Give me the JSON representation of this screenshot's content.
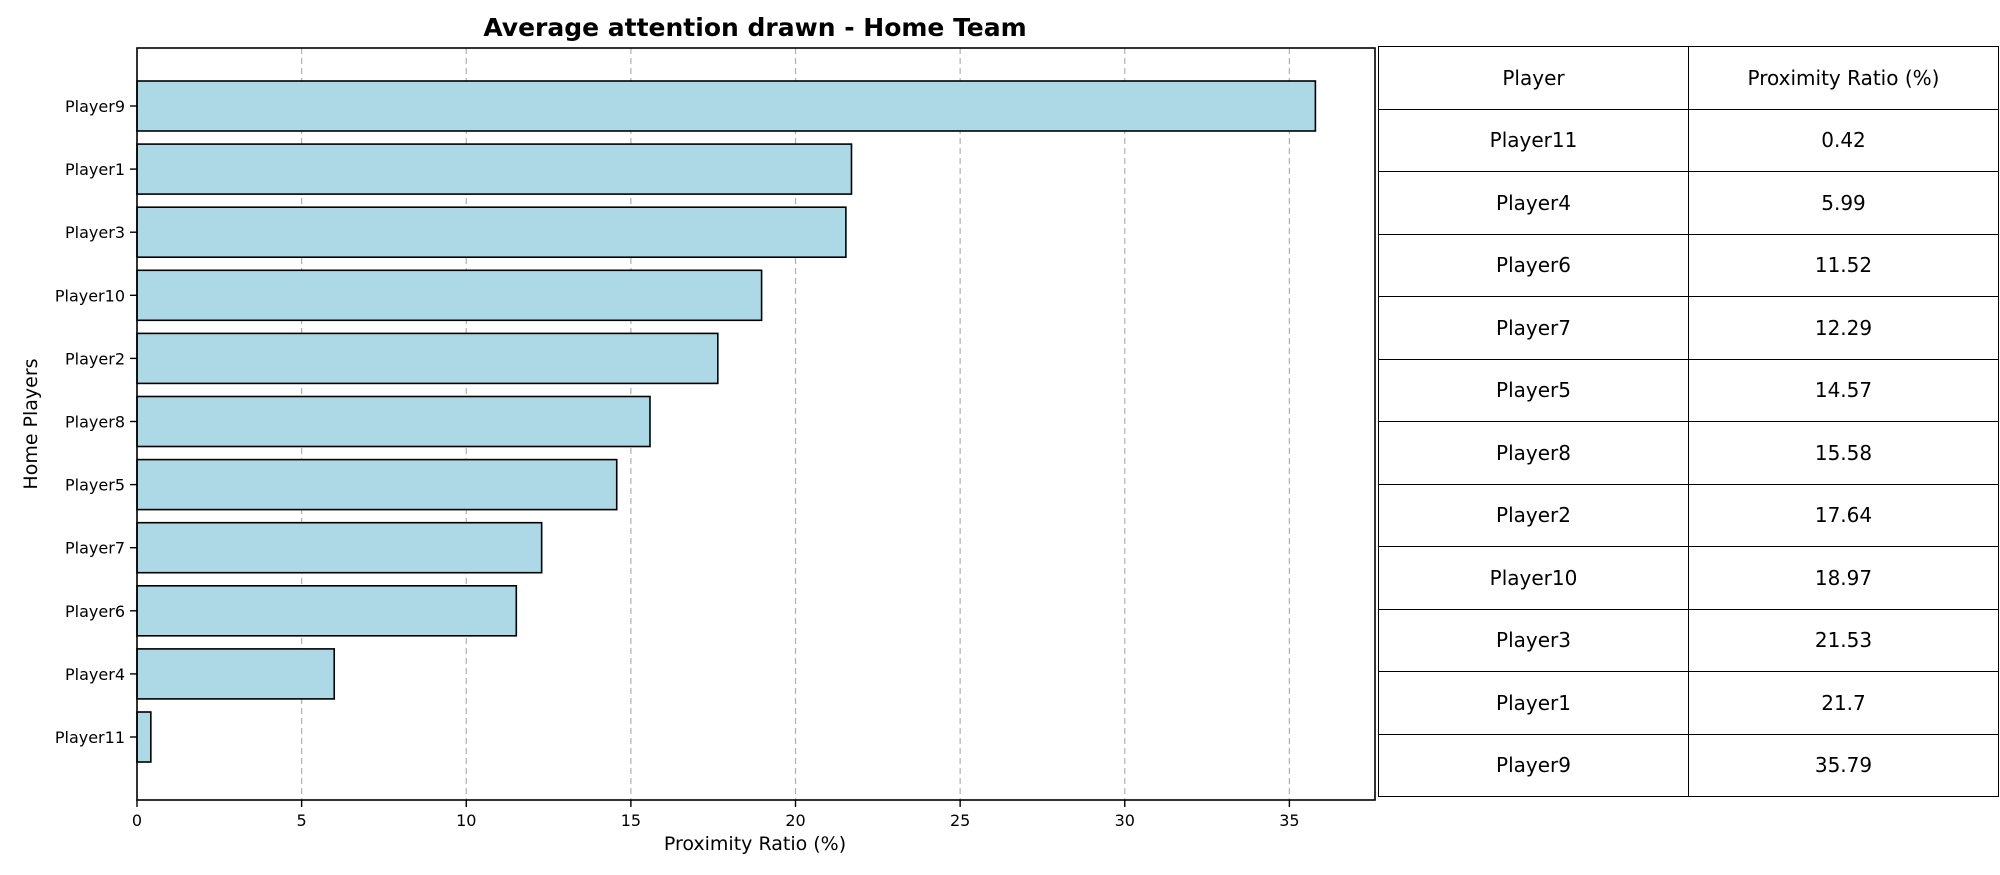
{
  "chart_data": {
    "type": "bar",
    "orientation": "horizontal",
    "title": "Average attention drawn - Home Team",
    "xlabel": "Proximity Ratio (%)",
    "ylabel": "Home Players",
    "categories": [
      "Player11",
      "Player4",
      "Player6",
      "Player7",
      "Player5",
      "Player8",
      "Player2",
      "Player10",
      "Player3",
      "Player1",
      "Player9"
    ],
    "values": [
      0.42,
      5.99,
      11.52,
      12.29,
      14.57,
      15.58,
      17.64,
      18.97,
      21.53,
      21.7,
      35.79
    ],
    "xlim": [
      0,
      37.6
    ],
    "xticks": [
      "0",
      "5",
      "10",
      "15",
      "20",
      "25",
      "30",
      "35"
    ],
    "grid": "x-dashed",
    "bar_color": "#add8e6",
    "edge_color": "#000000"
  },
  "table": {
    "headers": [
      "Player",
      "Proximity Ratio (%)"
    ],
    "rows": [
      [
        "Player11",
        "0.42"
      ],
      [
        "Player4",
        "5.99"
      ],
      [
        "Player6",
        "11.52"
      ],
      [
        "Player7",
        "12.29"
      ],
      [
        "Player5",
        "14.57"
      ],
      [
        "Player8",
        "15.58"
      ],
      [
        "Player2",
        "17.64"
      ],
      [
        "Player10",
        "18.97"
      ],
      [
        "Player3",
        "21.53"
      ],
      [
        "Player1",
        "21.7"
      ],
      [
        "Player9",
        "35.79"
      ]
    ]
  }
}
